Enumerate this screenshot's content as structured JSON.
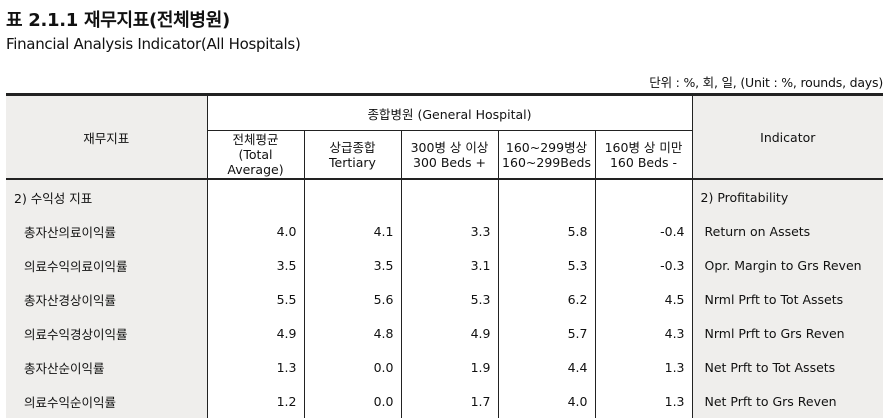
{
  "title": "표 2.1.1 재무지표(전체병원)",
  "subtitle": "Financial Analysis Indicator(All Hospitals)",
  "unit_note": "단위 : %, 회, 일, (Unit : %, rounds, days)",
  "header": {
    "left": "재무지표",
    "group": "종합병원 (General Hospital)",
    "right": "Indicator",
    "cols": [
      {
        "ko": "전체평균",
        "en": "(Total Average)"
      },
      {
        "ko": "상급종합",
        "en": "Tertiary"
      },
      {
        "ko": "300병 상 이상",
        "en": "300 Beds +"
      },
      {
        "ko": "160~299병상",
        "en": "160~299Beds"
      },
      {
        "ko": "160병 상 미만",
        "en": "160 Beds -"
      }
    ]
  },
  "section": {
    "ko": "2) 수익성 지표",
    "en": "2) Profitability"
  },
  "rows": [
    {
      "ko": "총자산의료이익률",
      "values": [
        "4.0",
        "4.1",
        "3.3",
        "5.8",
        "-0.4"
      ],
      "en": "Return on Assets"
    },
    {
      "ko": "의료수익의료이익률",
      "values": [
        "3.5",
        "3.5",
        "3.1",
        "5.3",
        "-0.3"
      ],
      "en": "Opr. Margin to Grs Reven"
    },
    {
      "ko": "총자산경상이익률",
      "values": [
        "5.5",
        "5.6",
        "5.3",
        "6.2",
        "4.5"
      ],
      "en": "Nrml Prft to Tot Assets"
    },
    {
      "ko": "의료수익경상이익률",
      "values": [
        "4.9",
        "4.8",
        "4.9",
        "5.7",
        "4.3"
      ],
      "en": "Nrml Prft to Grs Reven"
    },
    {
      "ko": "총자산순이익률",
      "values": [
        "1.3",
        "0.0",
        "1.9",
        "4.4",
        "1.3"
      ],
      "en": "Net Prft to Tot Assets"
    },
    {
      "ko": "의료수익순이익률",
      "values": [
        "1.2",
        "0.0",
        "1.7",
        "4.0",
        "1.3"
      ],
      "en": "Net Prft to Grs Reven"
    }
  ]
}
